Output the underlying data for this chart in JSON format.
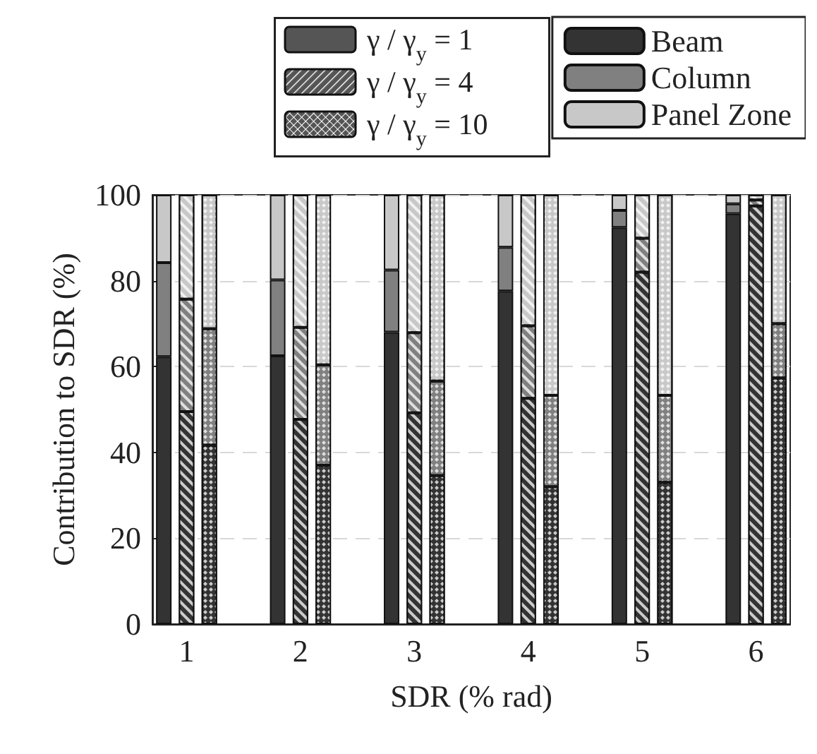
{
  "chart_data": {
    "type": "bar",
    "stacked": true,
    "xlabel": "SDR (% rad)",
    "ylabel": "Contribution to SDR (%)",
    "categories": [
      null,
      "1",
      null,
      null,
      null,
      null,
      "2",
      null,
      null,
      null,
      null,
      "3",
      null,
      null,
      null,
      null,
      "4",
      null,
      null,
      null,
      null,
      "5",
      null,
      null,
      null,
      null,
      "6",
      null
    ],
    "annotations": [
      "γ / γ$_{y}$ = 1",
      "γ / γ$_{y}$ = 4",
      "γ / γ$_{y}$ = 10"
    ],
    "series": [
      {
        "name": "Beam",
        "color": "#333333",
        "values": [
          62.3,
          49.5,
          41.7,
          null,
          null,
          62.5,
          47.7,
          37,
          null,
          null,
          68,
          49.2,
          34.6,
          null,
          null,
          77.6,
          52.6,
          32,
          null,
          null,
          92.4,
          82,
          33,
          null,
          null,
          95.6,
          97.4,
          57.3
        ]
      },
      {
        "name": "Column",
        "color": "#808080",
        "values": [
          21.9,
          26.2,
          27.1,
          null,
          null,
          17.7,
          21.4,
          23.4,
          null,
          null,
          14.5,
          18.7,
          22,
          null,
          null,
          10.2,
          16.9,
          21.3,
          null,
          null,
          4,
          7.9,
          20.3,
          null,
          null,
          2.3,
          1.4,
          12.7
        ]
      },
      {
        "name": "Panel Zone",
        "color": "#c8c8c8",
        "values": [
          15.8,
          24.3,
          31.2,
          null,
          null,
          19.8,
          30.9,
          39.6,
          null,
          null,
          17.5,
          32.1,
          43.4,
          null,
          null,
          12.2,
          30.5,
          46.7,
          null,
          null,
          3.6,
          10.1,
          46.7,
          null,
          null,
          2.1,
          1.2,
          30
        ]
      }
    ],
    "ylim": [
      0,
      100
    ],
    "yticks": [
      0,
      20,
      40,
      60,
      80,
      100
    ],
    "grid": "y",
    "legend": "top right"
  }
}
